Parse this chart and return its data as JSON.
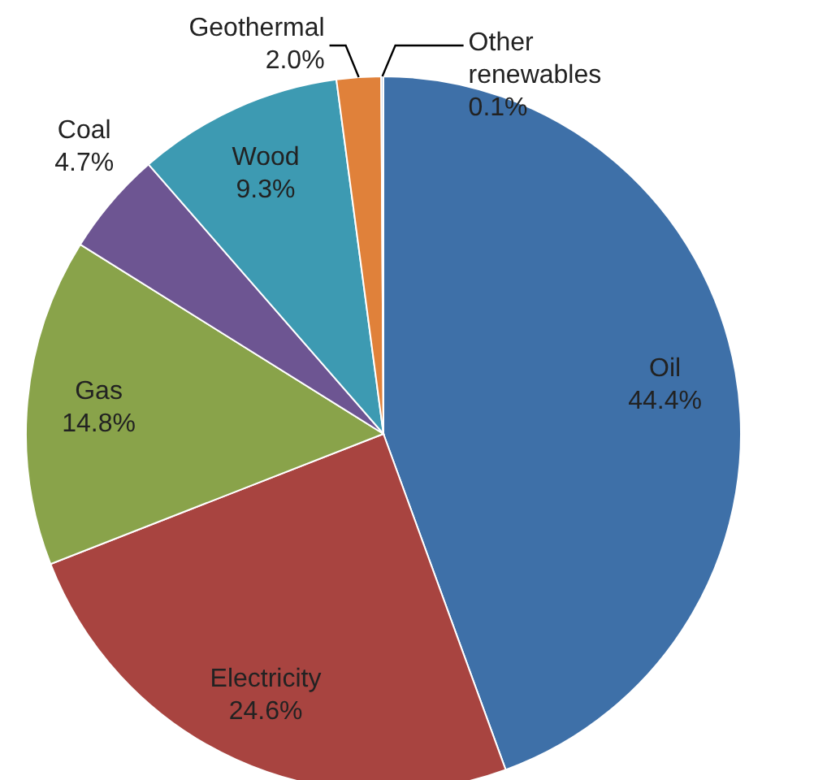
{
  "chart_data": {
    "type": "pie",
    "categories": [
      "Oil",
      "Electricity",
      "Gas",
      "Coal",
      "Wood",
      "Geothermal",
      "Other renewables"
    ],
    "values": [
      44.4,
      24.6,
      14.8,
      4.7,
      9.3,
      2.0,
      0.1
    ],
    "value_labels": [
      "44.4%",
      "24.6%",
      "14.8%",
      "4.7%",
      "9.3%",
      "2.0%",
      "0.1%"
    ],
    "colors": [
      "#3e70a8",
      "#a84440",
      "#89a34a",
      "#6d5592",
      "#3d9ab2",
      "#e0813a",
      "#b9cde5"
    ]
  }
}
